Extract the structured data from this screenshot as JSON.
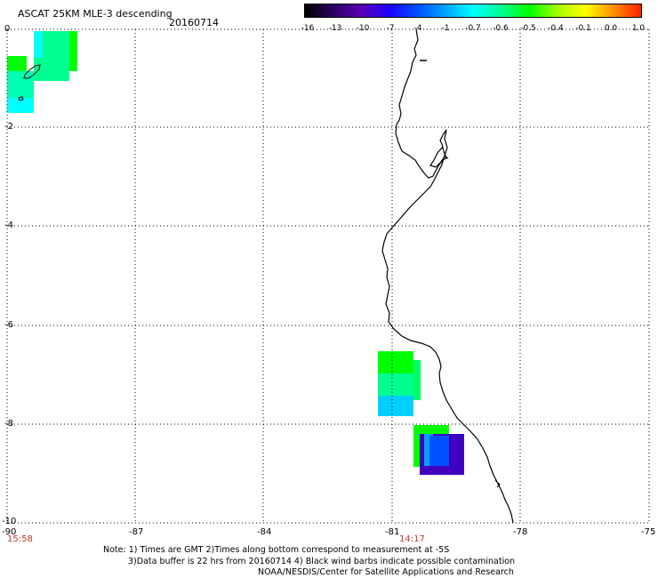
{
  "header": {
    "title": "ASCAT 25KM MLE-3 descending",
    "date": "20160714"
  },
  "colorbar": {
    "labels": [
      "-16",
      "-13",
      "-10",
      "-7",
      "-4",
      "-1",
      "-0.7",
      "-0.6",
      "-0.5",
      "-0.4",
      "-0.1",
      "0.0",
      "1.0"
    ],
    "colors": [
      "#000000",
      "#2a0060",
      "#5a00b0",
      "#1e00ff",
      "#0050ff",
      "#00a0ff",
      "#00ffff",
      "#00ff90",
      "#00ff00",
      "#a0ff00",
      "#ffff00",
      "#ff9000",
      "#ff2000"
    ]
  },
  "axes": {
    "x_labels": [
      "-90",
      "-87",
      "-84",
      "-81",
      "-78",
      "-75"
    ],
    "y_labels": [
      "0",
      "-2",
      "-4",
      "-6",
      "-8",
      "-10"
    ]
  },
  "times": {
    "left": "15:58",
    "middle": "14:17"
  },
  "notes": {
    "line1": "Note: 1) Times are GMT 2)Times along bottom correspond to measurement at -5S",
    "line2": "3)Data buffer is 22 hrs from 20160714 4) Black wind barbs indicate possible contamination",
    "line3": "NOAA/NESDIS/Center for Satellite Applications and Research"
  }
}
